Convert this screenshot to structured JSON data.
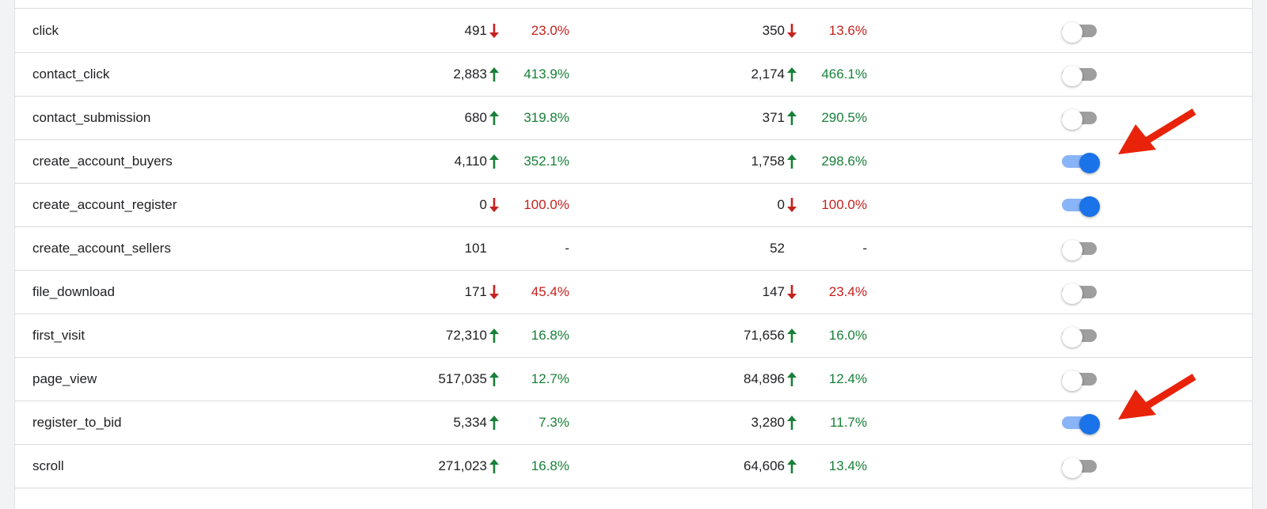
{
  "colors": {
    "up": "#188038",
    "down": "#c5221f",
    "toggle_on": "#1a73e8",
    "annotation_arrow": "#e8230a"
  },
  "events": [
    {
      "name": "click",
      "count": "491",
      "count_change_dir": "down",
      "count_change": "23.0%",
      "users": "350",
      "users_change_dir": "down",
      "users_change": "13.6%",
      "conversion": false
    },
    {
      "name": "contact_click",
      "count": "2,883",
      "count_change_dir": "up",
      "count_change": "413.9%",
      "users": "2,174",
      "users_change_dir": "up",
      "users_change": "466.1%",
      "conversion": false
    },
    {
      "name": "contact_submission",
      "count": "680",
      "count_change_dir": "up",
      "count_change": "319.8%",
      "users": "371",
      "users_change_dir": "up",
      "users_change": "290.5%",
      "conversion": false
    },
    {
      "name": "create_account_buyers",
      "count": "4,110",
      "count_change_dir": "up",
      "count_change": "352.1%",
      "users": "1,758",
      "users_change_dir": "up",
      "users_change": "298.6%",
      "conversion": true
    },
    {
      "name": "create_account_register",
      "count": "0",
      "count_change_dir": "down",
      "count_change": "100.0%",
      "users": "0",
      "users_change_dir": "down",
      "users_change": "100.0%",
      "conversion": true
    },
    {
      "name": "create_account_sellers",
      "count": "101",
      "count_change_dir": "none",
      "count_change": "-",
      "users": "52",
      "users_change_dir": "none",
      "users_change": "-",
      "conversion": false
    },
    {
      "name": "file_download",
      "count": "171",
      "count_change_dir": "down",
      "count_change": "45.4%",
      "users": "147",
      "users_change_dir": "down",
      "users_change": "23.4%",
      "conversion": false
    },
    {
      "name": "first_visit",
      "count": "72,310",
      "count_change_dir": "up",
      "count_change": "16.8%",
      "users": "71,656",
      "users_change_dir": "up",
      "users_change": "16.0%",
      "conversion": false
    },
    {
      "name": "page_view",
      "count": "517,035",
      "count_change_dir": "up",
      "count_change": "12.7%",
      "users": "84,896",
      "users_change_dir": "up",
      "users_change": "12.4%",
      "conversion": false
    },
    {
      "name": "register_to_bid",
      "count": "5,334",
      "count_change_dir": "up",
      "count_change": "7.3%",
      "users": "3,280",
      "users_change_dir": "up",
      "users_change": "11.7%",
      "conversion": true
    },
    {
      "name": "scroll",
      "count": "271,023",
      "count_change_dir": "up",
      "count_change": "16.8%",
      "users": "64,606",
      "users_change_dir": "up",
      "users_change": "13.4%",
      "conversion": false
    }
  ],
  "annotations": [
    {
      "icon": "red-arrow-icon",
      "points_to": "create_account_buyers"
    },
    {
      "icon": "red-arrow-icon",
      "points_to": "register_to_bid"
    }
  ]
}
